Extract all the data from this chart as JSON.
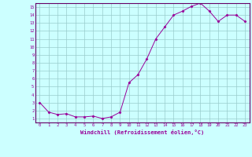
{
  "x": [
    0,
    1,
    2,
    3,
    4,
    5,
    6,
    7,
    8,
    9,
    10,
    11,
    12,
    13,
    14,
    15,
    16,
    17,
    18,
    19,
    20,
    21,
    22,
    23
  ],
  "y": [
    3.0,
    1.8,
    1.5,
    1.6,
    1.2,
    1.2,
    1.3,
    1.0,
    1.2,
    1.8,
    5.5,
    6.5,
    8.5,
    11.0,
    12.5,
    14.0,
    14.5,
    15.1,
    15.5,
    14.5,
    13.2,
    14.0,
    14.0,
    13.2
  ],
  "line_color": "#990099",
  "marker": "D",
  "marker_size": 1.5,
  "bg_color": "#ccffff",
  "grid_color": "#99cccc",
  "xlabel": "Windchill (Refroidissement éolien,°C)",
  "xlabel_color": "#990099",
  "tick_color": "#990099",
  "spine_color": "#660066",
  "xlim": [
    -0.5,
    23.5
  ],
  "ylim": [
    0.5,
    15.5
  ],
  "yticks": [
    1,
    2,
    3,
    4,
    5,
    6,
    7,
    8,
    9,
    10,
    11,
    12,
    13,
    14,
    15
  ],
  "xticks": [
    0,
    1,
    2,
    3,
    4,
    5,
    6,
    7,
    8,
    9,
    10,
    11,
    12,
    13,
    14,
    15,
    16,
    17,
    18,
    19,
    20,
    21,
    22,
    23
  ]
}
